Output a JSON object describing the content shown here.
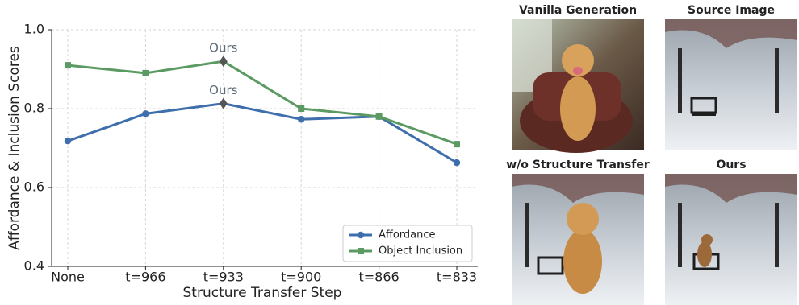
{
  "chart_data": {
    "type": "line",
    "x_label": "Structure Transfer Step",
    "y_label": "Affordance & Inclusion Scores",
    "categories": [
      "None",
      "t=966",
      "t=933",
      "t=900",
      "t=866",
      "t=833"
    ],
    "series": [
      {
        "name": "Affordance",
        "color": "#3e6eac",
        "marker": "circle",
        "values": [
          0.718,
          0.787,
          0.813,
          0.773,
          0.78,
          0.663
        ]
      },
      {
        "name": "Object Inclusion",
        "color": "#5b9a62",
        "marker": "square",
        "values": [
          0.91,
          0.89,
          0.92,
          0.8,
          0.78,
          0.71
        ]
      }
    ],
    "ylim": [
      0.4,
      1.0
    ],
    "yticks": [
      0.4,
      0.6,
      0.8,
      {
        "value": 1.0,
        "label": "1.0"
      }
    ],
    "grid": true,
    "legend": "lower right",
    "annotations": [
      {
        "text": "Ours",
        "category": "t=933",
        "series": "Object Inclusion"
      },
      {
        "text": "Ours",
        "category": "t=933",
        "series": "Affordance"
      }
    ]
  },
  "images": [
    {
      "title": "Vanilla Generation"
    },
    {
      "title": "Source Image"
    },
    {
      "title": "w/o Structure Transfer"
    },
    {
      "title": "Ours"
    }
  ]
}
